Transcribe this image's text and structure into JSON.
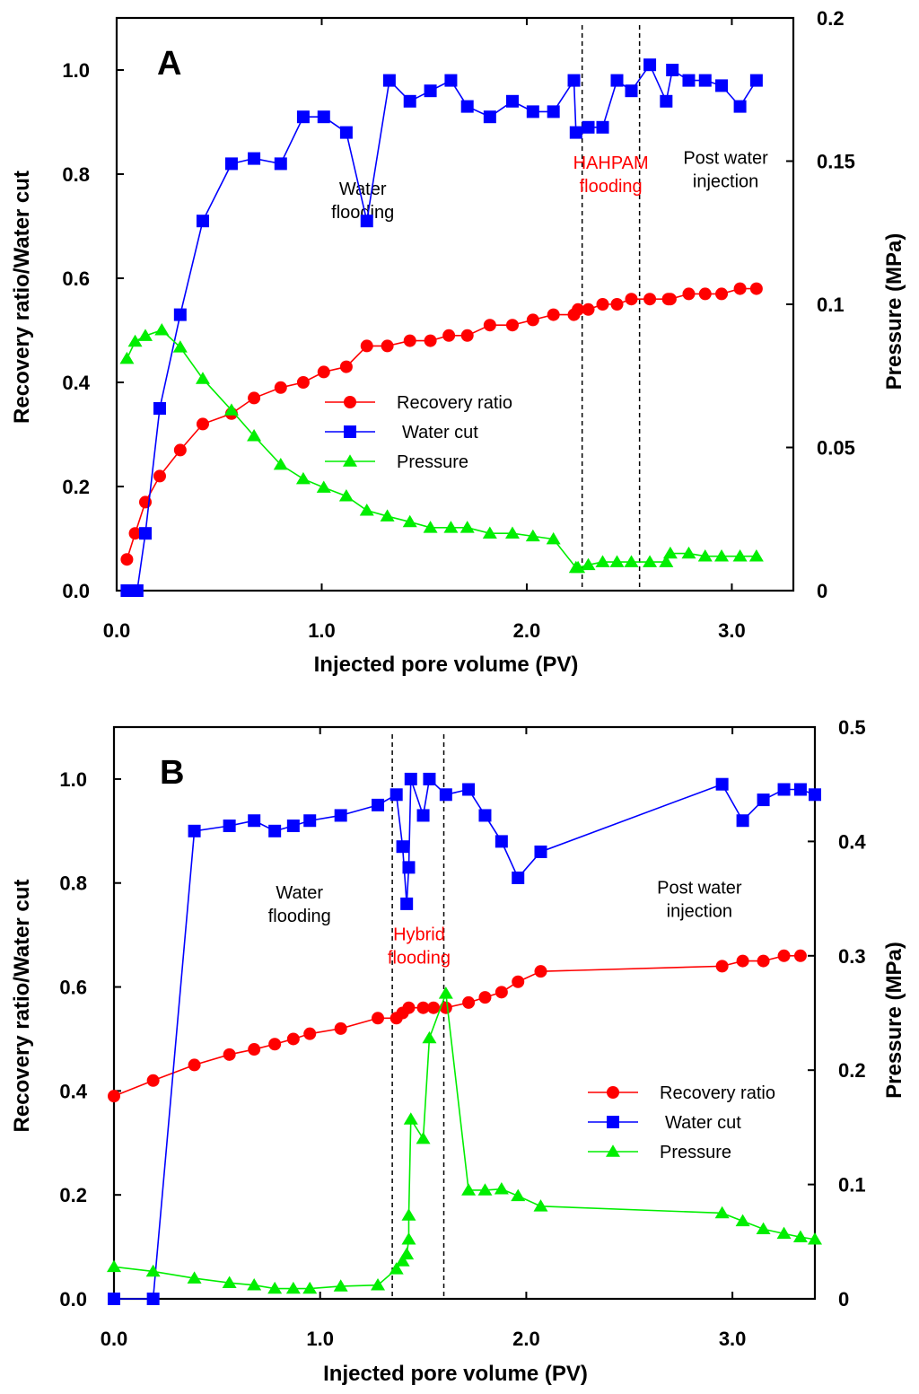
{
  "colors": {
    "recovery": "#ff0000",
    "water_cut": "#0000ff",
    "pressure": "#00ee00"
  },
  "chart_data": [
    {
      "type": "line",
      "panel": "A",
      "xlabel": "Injected pore volume (PV)",
      "ylabel": "Recovery ratio/Water cut",
      "y2label": "Pressure (MPa)",
      "xlim": [
        0,
        3.3
      ],
      "ylim": [
        0,
        1.1
      ],
      "y2lim": [
        0,
        0.2
      ],
      "xticks": [
        "0.0",
        "1.0",
        "2.0",
        "3.0"
      ],
      "xtick_values": [
        0,
        1,
        2,
        3
      ],
      "yticks": [
        "0.0",
        "0.2",
        "0.4",
        "0.6",
        "0.8",
        "1.0"
      ],
      "ytick_values": [
        0,
        0.2,
        0.4,
        0.6,
        0.8,
        1.0
      ],
      "y2ticks": [
        "0",
        "0.05",
        "0.1",
        "0.15",
        "0.2"
      ],
      "y2tick_values": [
        0,
        0.05,
        0.1,
        0.15,
        0.2
      ],
      "phase_boundaries": [
        2.27,
        2.55
      ],
      "annotations": [
        {
          "lines": [
            "Water",
            "flooding"
          ],
          "x": 1.2,
          "y": 0.76,
          "color": "black"
        },
        {
          "lines": [
            "HAHPAM",
            "flooding"
          ],
          "x": 2.41,
          "y": 0.81,
          "color": "red"
        },
        {
          "lines": [
            "Post water",
            "injection"
          ],
          "x": 2.97,
          "y": 0.82,
          "color": "black"
        }
      ],
      "legend": [
        "Recovery ratio",
        "Water cut",
        "Pressure"
      ],
      "series": [
        {
          "name": "Recovery ratio",
          "axis": "left",
          "marker": "circle",
          "x": [
            0.05,
            0.09,
            0.14,
            0.21,
            0.31,
            0.42,
            0.56,
            0.67,
            0.8,
            0.91,
            1.01,
            1.12,
            1.22,
            1.32,
            1.43,
            1.53,
            1.62,
            1.71,
            1.82,
            1.93,
            2.03,
            2.13,
            2.23,
            2.25,
            2.3,
            2.37,
            2.44,
            2.51,
            2.6,
            2.69,
            2.7,
            2.79,
            2.87,
            2.95,
            3.04,
            3.12
          ],
          "y": [
            0.06,
            0.11,
            0.17,
            0.22,
            0.27,
            0.32,
            0.34,
            0.37,
            0.39,
            0.4,
            0.42,
            0.43,
            0.47,
            0.47,
            0.48,
            0.48,
            0.49,
            0.49,
            0.51,
            0.51,
            0.52,
            0.53,
            0.53,
            0.54,
            0.54,
            0.55,
            0.55,
            0.56,
            0.56,
            0.56,
            0.56,
            0.57,
            0.57,
            0.57,
            0.58,
            0.58
          ]
        },
        {
          "name": "Water cut",
          "axis": "left",
          "marker": "square",
          "x": [
            0.05,
            0.08,
            0.1,
            0.14,
            0.21,
            0.31,
            0.42,
            0.56,
            0.67,
            0.8,
            0.91,
            1.01,
            1.12,
            1.22,
            1.33,
            1.43,
            1.53,
            1.63,
            1.71,
            1.82,
            1.93,
            2.03,
            2.13,
            2.23,
            2.24,
            2.3,
            2.37,
            2.44,
            2.51,
            2.6,
            2.68,
            2.71,
            2.79,
            2.87,
            2.95,
            3.04,
            3.12
          ],
          "y": [
            0.0,
            0.0,
            0.0,
            0.11,
            0.35,
            0.53,
            0.71,
            0.82,
            0.83,
            0.82,
            0.91,
            0.91,
            0.88,
            0.71,
            0.98,
            0.94,
            0.96,
            0.98,
            0.93,
            0.91,
            0.94,
            0.92,
            0.92,
            0.98,
            0.88,
            0.89,
            0.89,
            0.98,
            0.96,
            1.01,
            0.94,
            1.0,
            0.98,
            0.98,
            0.97,
            0.93,
            0.98
          ]
        },
        {
          "name": "Pressure",
          "axis": "right",
          "marker": "triangle",
          "x": [
            0.05,
            0.09,
            0.14,
            0.22,
            0.31,
            0.42,
            0.56,
            0.67,
            0.8,
            0.91,
            1.01,
            1.12,
            1.22,
            1.32,
            1.43,
            1.53,
            1.63,
            1.71,
            1.82,
            1.93,
            2.03,
            2.13,
            2.24,
            2.25,
            2.3,
            2.37,
            2.44,
            2.51,
            2.6,
            2.68,
            2.7,
            2.79,
            2.87,
            2.95,
            3.04,
            3.12
          ],
          "y": [
            0.081,
            0.087,
            0.089,
            0.091,
            0.085,
            0.074,
            0.063,
            0.054,
            0.044,
            0.039,
            0.036,
            0.033,
            0.028,
            0.026,
            0.024,
            0.022,
            0.022,
            0.022,
            0.02,
            0.02,
            0.019,
            0.018,
            0.008,
            0.008,
            0.009,
            0.01,
            0.01,
            0.01,
            0.01,
            0.01,
            0.013,
            0.013,
            0.012,
            0.012,
            0.012,
            0.012
          ]
        }
      ]
    },
    {
      "type": "line",
      "panel": "B",
      "xlabel": "Injected pore volume (PV)",
      "ylabel": "Recovery ratio/Water cut",
      "y2label": "Pressure (MPa)",
      "xlim": [
        0,
        3.4
      ],
      "ylim": [
        0,
        1.1
      ],
      "y2lim": [
        0,
        0.5
      ],
      "xticks": [
        "0.0",
        "1.0",
        "2.0",
        "3.0"
      ],
      "xtick_values": [
        0,
        1,
        2,
        3
      ],
      "yticks": [
        "0.0",
        "0.2",
        "0.4",
        "0.6",
        "0.8",
        "1.0"
      ],
      "ytick_values": [
        0,
        0.2,
        0.4,
        0.6,
        0.8,
        1.0
      ],
      "y2ticks": [
        "0",
        "0.1",
        "0.2",
        "0.3",
        "0.4",
        "0.5"
      ],
      "y2tick_values": [
        0,
        0.1,
        0.2,
        0.3,
        0.4,
        0.5
      ],
      "phase_boundaries": [
        1.35,
        1.6
      ],
      "annotations": [
        {
          "lines": [
            "Water",
            "flooding"
          ],
          "x": 0.9,
          "y": 0.77,
          "color": "black"
        },
        {
          "lines": [
            "Hybrid",
            "flooding"
          ],
          "x": 1.48,
          "y": 0.69,
          "color": "red"
        },
        {
          "lines": [
            "Post water",
            "injection"
          ],
          "x": 2.84,
          "y": 0.78,
          "color": "black"
        }
      ],
      "legend": [
        "Recovery ratio",
        "Water cut",
        "Pressure"
      ],
      "series": [
        {
          "name": "Recovery ratio",
          "axis": "left",
          "marker": "circle",
          "x": [
            0.0,
            0.19,
            0.39,
            0.56,
            0.68,
            0.78,
            0.87,
            0.95,
            1.1,
            1.28,
            1.37,
            1.4,
            1.43,
            1.5,
            1.55,
            1.61,
            1.72,
            1.8,
            1.88,
            1.96,
            2.07,
            2.95,
            3.05,
            3.15,
            3.25,
            3.33
          ],
          "y": [
            0.39,
            0.42,
            0.45,
            0.47,
            0.48,
            0.49,
            0.5,
            0.51,
            0.52,
            0.54,
            0.54,
            0.55,
            0.56,
            0.56,
            0.56,
            0.56,
            0.57,
            0.58,
            0.59,
            0.61,
            0.63,
            0.64,
            0.65,
            0.65,
            0.66,
            0.66
          ]
        },
        {
          "name": "Water cut",
          "axis": "left",
          "marker": "square",
          "x": [
            0.0,
            0.19,
            0.39,
            0.56,
            0.68,
            0.78,
            0.87,
            0.95,
            1.1,
            1.28,
            1.37,
            1.4,
            1.42,
            1.43,
            1.44,
            1.5,
            1.53,
            1.61,
            1.72,
            1.8,
            1.88,
            1.96,
            2.07,
            2.95,
            3.05,
            3.15,
            3.25,
            3.33,
            3.4
          ],
          "y": [
            0.0,
            0.0,
            0.9,
            0.91,
            0.92,
            0.9,
            0.91,
            0.92,
            0.93,
            0.95,
            0.97,
            0.87,
            0.76,
            0.83,
            1.0,
            0.93,
            1.0,
            0.97,
            0.98,
            0.93,
            0.88,
            0.81,
            0.86,
            0.99,
            0.92,
            0.96,
            0.98,
            0.98,
            0.97
          ]
        },
        {
          "name": "Pressure",
          "axis": "right",
          "marker": "triangle",
          "x": [
            0.0,
            0.19,
            0.39,
            0.56,
            0.68,
            0.78,
            0.87,
            0.95,
            1.1,
            1.28,
            1.37,
            1.4,
            1.42,
            1.43,
            1.43,
            1.44,
            1.5,
            1.53,
            1.61,
            1.72,
            1.8,
            1.88,
            1.96,
            2.07,
            2.95,
            3.05,
            3.15,
            3.25,
            3.33,
            3.4
          ],
          "y": [
            0.028,
            0.024,
            0.018,
            0.014,
            0.012,
            0.009,
            0.009,
            0.009,
            0.011,
            0.012,
            0.026,
            0.033,
            0.039,
            0.052,
            0.073,
            0.157,
            0.14,
            0.228,
            0.267,
            0.095,
            0.095,
            0.096,
            0.09,
            0.081,
            0.075,
            0.068,
            0.061,
            0.057,
            0.054,
            0.052
          ]
        }
      ]
    }
  ]
}
